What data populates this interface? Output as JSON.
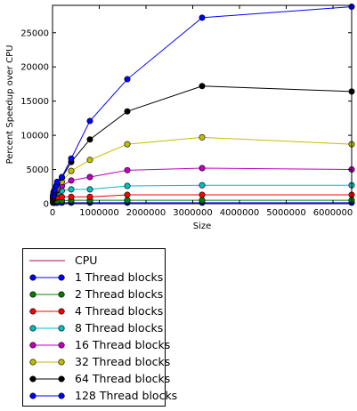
{
  "chart_data": {
    "type": "line",
    "title": "",
    "xlabel": "Size",
    "ylabel": "Percent Speedup over CPU",
    "xlim": [
      0,
      6400000
    ],
    "ylim": [
      0,
      29000
    ],
    "x_ticks": [
      0,
      1000000,
      2000000,
      3000000,
      4000000,
      5000000,
      6000000
    ],
    "x_tick_labels": [
      "0",
      "1000000",
      "2000000",
      "3000000",
      "4000000",
      "5000000",
      "6000000"
    ],
    "y_ticks": [
      0,
      5000,
      10000,
      15000,
      20000,
      25000
    ],
    "y_tick_labels": [
      "0",
      "5000",
      "10000",
      "15000",
      "20000",
      "25000"
    ],
    "grid": false,
    "legend_position": "below",
    "x": [
      10000,
      20000,
      40000,
      80000,
      100000,
      200000,
      400000,
      800000,
      1600000,
      3200000,
      6400000
    ],
    "series": [
      {
        "name": "CPU",
        "color": "#bf004f",
        "marker": "none",
        "values": [
          0,
          0,
          0,
          0,
          0,
          0,
          0,
          0,
          0,
          0,
          0
        ]
      },
      {
        "name": "1 Thread blocks",
        "color": "#0000ff",
        "marker": "circle",
        "values": [
          150,
          150,
          150,
          150,
          150,
          150,
          150,
          150,
          150,
          150,
          150
        ]
      },
      {
        "name": "2 Thread blocks",
        "color": "#008000",
        "marker": "circle",
        "values": [
          300,
          300,
          350,
          400,
          400,
          450,
          500,
          500,
          500,
          500,
          500
        ]
      },
      {
        "name": "4 Thread blocks",
        "color": "#ff0000",
        "marker": "circle",
        "values": [
          600,
          700,
          800,
          900,
          950,
          1000,
          1000,
          1000,
          1300,
          1300,
          1300
        ]
      },
      {
        "name": "8 Thread blocks",
        "color": "#00bfbf",
        "marker": "circle",
        "values": [
          800,
          1000,
          1200,
          1500,
          1600,
          1900,
          2100,
          2100,
          2600,
          2700,
          2700
        ]
      },
      {
        "name": "16 Thread blocks",
        "color": "#bf00bf",
        "marker": "circle",
        "values": [
          900,
          1200,
          1500,
          1800,
          2000,
          2600,
          3400,
          3900,
          4900,
          5200,
          5000
        ]
      },
      {
        "name": "32 Thread blocks",
        "color": "#bfbf00",
        "marker": "circle",
        "values": [
          1000,
          1300,
          1700,
          2100,
          2400,
          3200,
          4800,
          6400,
          8700,
          9700,
          8700
        ]
      },
      {
        "name": "64 Thread blocks",
        "color": "#000000",
        "marker": "circle",
        "values": [
          1100,
          1500,
          1900,
          2600,
          3000,
          3800,
          6100,
          9400,
          13500,
          17200,
          16400
        ]
      },
      {
        "name": "128 Thread blocks",
        "color": "#0000ff",
        "marker": "circle",
        "values": [
          1200,
          1700,
          2000,
          2600,
          3200,
          3900,
          6600,
          12100,
          18200,
          27200,
          28800
        ]
      }
    ]
  }
}
